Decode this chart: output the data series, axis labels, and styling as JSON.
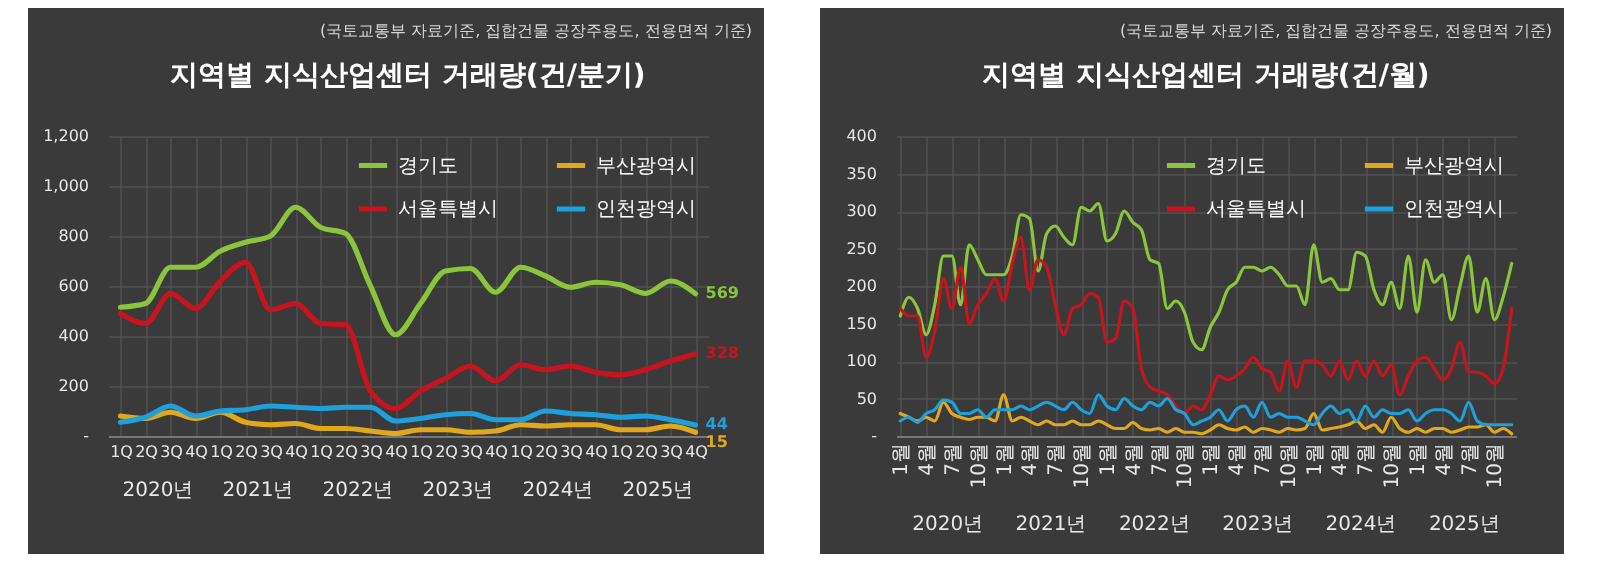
{
  "chart_data": [
    {
      "type": "line",
      "title": "지역별 지식산업센터 거래량(건/분기)",
      "categories": [
        "1Q",
        "2Q",
        "3Q",
        "4Q",
        "1Q",
        "2Q",
        "3Q",
        "4Q",
        "1Q",
        "2Q",
        "3Q",
        "4Q",
        "1Q",
        "2Q",
        "3Q",
        "4Q",
        "1Q",
        "2Q",
        "3Q",
        "4Q",
        "1Q",
        "2Q",
        "3Q",
        "4Q"
      ],
      "ylim": [
        0,
        1200
      ],
      "yticks": [
        {
          "value": 0,
          "label": "-"
        },
        200,
        400,
        600,
        800,
        {
          "value": 1000,
          "label": "1,000"
        },
        {
          "value": 1200,
          "label": "1,200"
        }
      ],
      "grid": true,
      "legend": "top right",
      "annotations": [
        "(국토교통부 자료기준, 집합건물 공장주용도, 전용면적 기준)",
        "2020년",
        "2021년",
        "2022년",
        "2023년",
        "2024년",
        "2025년"
      ],
      "series": [
        {
          "name": "경기도",
          "color": "#8cc43c",
          "values": [
            515,
            530,
            675,
            675,
            740,
            775,
            800,
            915,
            835,
            810,
            600,
            405,
            530,
            660,
            670,
            575,
            675,
            640,
            595,
            615,
            605,
            570,
            620,
            569
          ],
          "value_labels": [
            null,
            null,
            null,
            null,
            null,
            null,
            null,
            null,
            null,
            null,
            null,
            null,
            null,
            null,
            null,
            null,
            null,
            null,
            null,
            null,
            null,
            null,
            null,
            "569"
          ]
        },
        {
          "name": "부산광역시",
          "color": "#e0a81c",
          "values": [
            80,
            70,
            95,
            70,
            95,
            55,
            45,
            50,
            30,
            30,
            20,
            10,
            25,
            25,
            15,
            20,
            45,
            40,
            45,
            45,
            25,
            25,
            40,
            15
          ],
          "value_labels": [
            null,
            null,
            null,
            null,
            null,
            null,
            null,
            null,
            null,
            null,
            null,
            null,
            null,
            null,
            null,
            null,
            null,
            null,
            null,
            null,
            null,
            null,
            null,
            "15"
          ]
        },
        {
          "name": "서울특별시",
          "color": "#c8141e",
          "values": [
            490,
            450,
            570,
            510,
            620,
            695,
            505,
            530,
            450,
            445,
            180,
            110,
            180,
            230,
            280,
            220,
            285,
            265,
            280,
            255,
            245,
            265,
            300,
            328
          ],
          "value_labels": [
            null,
            null,
            null,
            null,
            null,
            null,
            null,
            null,
            null,
            null,
            null,
            null,
            null,
            null,
            null,
            null,
            null,
            null,
            null,
            null,
            null,
            null,
            null,
            "328"
          ]
        },
        {
          "name": "인천광역시",
          "color": "#1ea0dc",
          "values": [
            55,
            75,
            120,
            80,
            100,
            105,
            120,
            115,
            110,
            115,
            115,
            60,
            70,
            85,
            90,
            65,
            65,
            100,
            90,
            85,
            75,
            80,
            65,
            44
          ],
          "value_labels": [
            null,
            null,
            null,
            null,
            null,
            null,
            null,
            null,
            null,
            null,
            null,
            null,
            null,
            null,
            null,
            null,
            null,
            null,
            null,
            null,
            null,
            null,
            null,
            "44"
          ]
        }
      ]
    },
    {
      "type": "line",
      "title": "지역별 지식산업센터 거래량(건/월)",
      "categories": [
        "1월",
        null,
        null,
        "4월",
        null,
        null,
        "7월",
        null,
        null,
        "10월",
        null,
        null,
        "1월",
        null,
        null,
        "4월",
        null,
        null,
        "7월",
        null,
        null,
        "10월",
        null,
        null,
        "1월",
        null,
        null,
        "4월",
        null,
        null,
        "7월",
        null,
        null,
        "10월",
        null,
        null,
        "1월",
        null,
        null,
        "4월",
        null,
        null,
        "7월",
        null,
        null,
        "10월",
        null,
        null,
        "1월",
        null,
        null,
        "4월",
        null,
        null,
        "7월",
        null,
        null,
        "10월",
        null,
        null,
        "1월",
        null,
        null,
        "4월",
        null,
        null,
        "7월",
        null,
        null,
        "10월",
        null,
        null
      ],
      "ylim": [
        0,
        400
      ],
      "yticks": [
        {
          "value": 0,
          "label": "-"
        },
        50,
        100,
        150,
        200,
        250,
        300,
        350,
        400
      ],
      "grid": true,
      "legend": "top right",
      "annotations": [
        "(국토교통부 자료기준, 집합건물 공장주용도, 전용면적 기준)",
        "2020년",
        "2021년",
        "2022년",
        "2023년",
        "2024년",
        "2025년"
      ],
      "series": [
        {
          "name": "경기도",
          "color": "#8cc43c",
          "values": [
            160,
            185,
            170,
            135,
            175,
            240,
            240,
            175,
            255,
            235,
            215,
            215,
            215,
            240,
            295,
            290,
            220,
            270,
            280,
            265,
            255,
            305,
            300,
            310,
            260,
            270,
            300,
            285,
            275,
            235,
            230,
            170,
            180,
            165,
            125,
            115,
            145,
            165,
            195,
            205,
            225,
            225,
            220,
            225,
            215,
            200,
            200,
            175,
            255,
            205,
            210,
            195,
            195,
            245,
            240,
            195,
            175,
            205,
            170,
            240,
            165,
            235,
            205,
            215,
            155,
            200,
            240,
            165,
            210,
            155,
            185,
            230
          ]
        },
        {
          "name": "부산광역시",
          "color": "#e0a81c",
          "values": [
            30,
            25,
            20,
            25,
            20,
            45,
            30,
            25,
            22,
            25,
            25,
            20,
            55,
            20,
            25,
            20,
            15,
            20,
            15,
            15,
            20,
            15,
            15,
            20,
            15,
            10,
            10,
            18,
            10,
            8,
            10,
            5,
            10,
            5,
            5,
            3,
            8,
            15,
            10,
            8,
            12,
            5,
            10,
            8,
            5,
            10,
            8,
            10,
            30,
            8,
            10,
            12,
            15,
            20,
            10,
            15,
            5,
            25,
            10,
            5,
            10,
            5,
            10,
            10,
            5,
            8,
            12,
            12,
            15,
            5,
            10,
            3
          ]
        },
        {
          "name": "서울특별시",
          "color": "#c8141e",
          "values": [
            170,
            160,
            160,
            105,
            140,
            210,
            170,
            225,
            150,
            175,
            190,
            210,
            180,
            230,
            265,
            195,
            235,
            225,
            175,
            135,
            170,
            175,
            190,
            185,
            125,
            130,
            180,
            170,
            90,
            65,
            60,
            55,
            40,
            30,
            40,
            35,
            55,
            80,
            75,
            80,
            90,
            105,
            90,
            85,
            60,
            100,
            65,
            100,
            100,
            95,
            80,
            100,
            75,
            100,
            80,
            100,
            80,
            95,
            55,
            80,
            100,
            105,
            90,
            75,
            90,
            125,
            85,
            85,
            80,
            70,
            90,
            170
          ]
        },
        {
          "name": "인천광역시",
          "color": "#1ea0dc",
          "values": [
            20,
            25,
            18,
            30,
            35,
            48,
            45,
            30,
            30,
            35,
            25,
            35,
            35,
            35,
            40,
            35,
            40,
            45,
            40,
            35,
            45,
            35,
            30,
            55,
            40,
            35,
            50,
            40,
            35,
            45,
            40,
            50,
            35,
            30,
            15,
            20,
            25,
            35,
            20,
            35,
            40,
            25,
            45,
            25,
            30,
            25,
            25,
            20,
            15,
            30,
            40,
            30,
            35,
            20,
            40,
            25,
            35,
            30,
            30,
            35,
            20,
            30,
            35,
            35,
            30,
            20,
            45,
            20,
            15,
            15,
            15,
            15
          ]
        }
      ]
    }
  ]
}
